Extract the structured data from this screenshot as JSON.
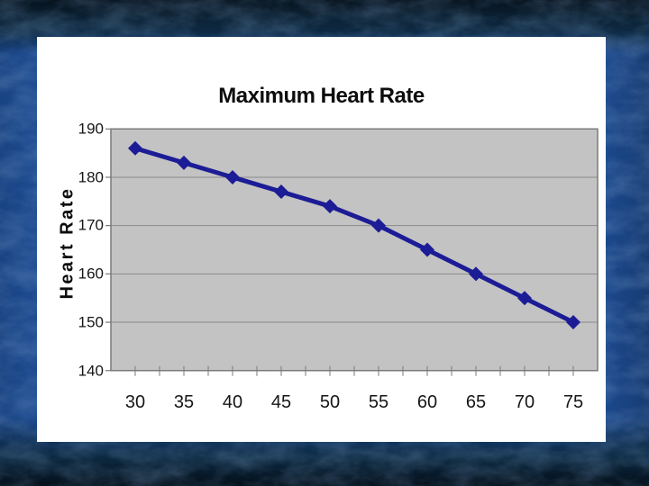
{
  "slide": {
    "background": {
      "base_blue": "#1e4f9c",
      "top_band": "#0b2133",
      "bottom_band": "#0c2a42"
    },
    "card_color": "#ffffff"
  },
  "chart_data": {
    "type": "line",
    "title": "Maximum Heart Rate",
    "xlabel": "",
    "ylabel": "Heart Rate",
    "x": [
      30,
      35,
      40,
      45,
      50,
      55,
      60,
      65,
      70,
      75
    ],
    "series": [
      {
        "name": "Maximum Heart Rate",
        "values": [
          186,
          183,
          180,
          177,
          174,
          170,
          165,
          160,
          155,
          150
        ]
      }
    ],
    "ylim": [
      140,
      190
    ],
    "y_ticks": [
      140,
      150,
      160,
      170,
      180,
      190
    ],
    "grid": true,
    "legend": false,
    "marker": "diamond",
    "line_color": "#1c1c96",
    "plot_bg": "#c3c3c3",
    "gridline_color": "#8a8a8a",
    "axis_color": "#7a7a7a",
    "label_color": "#161616"
  }
}
